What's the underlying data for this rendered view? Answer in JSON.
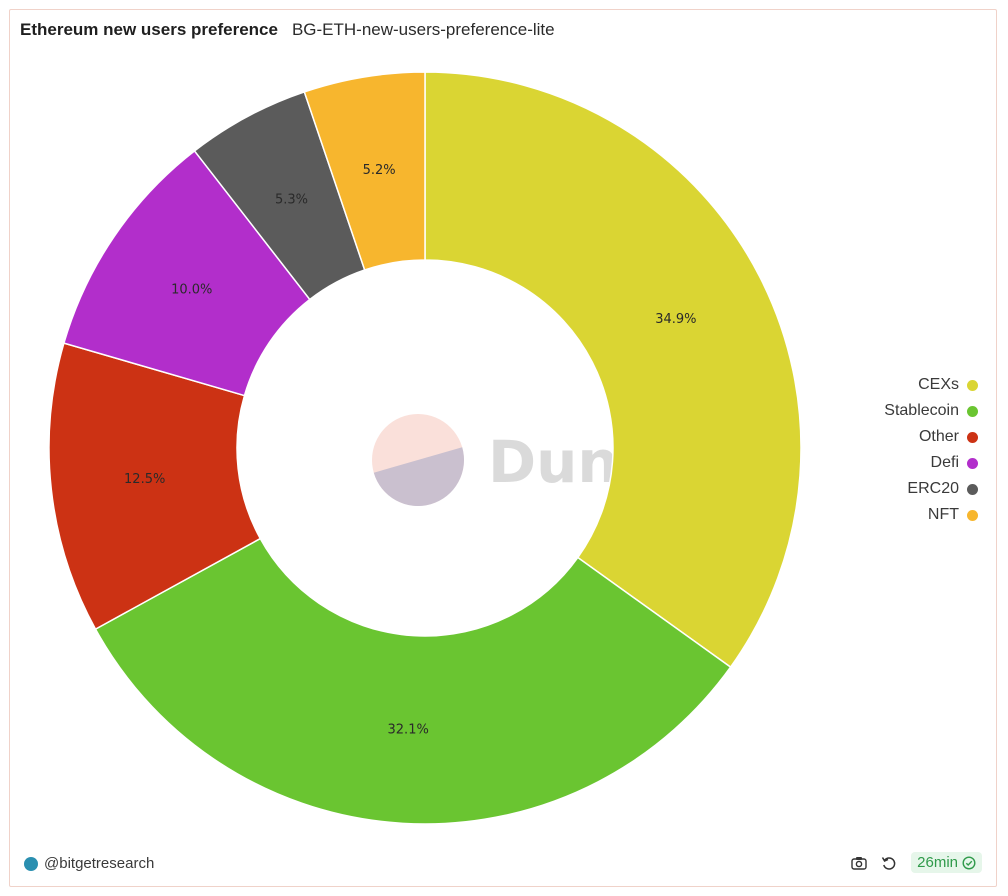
{
  "header": {
    "title": "Ethereum new users preference",
    "subtitle": "BG-ETH-new-users-preference-lite"
  },
  "chart_data": {
    "type": "pie",
    "donut": true,
    "categories": [
      "CEXs",
      "Stablecoin",
      "Other",
      "Defi",
      "ERC20",
      "NFT"
    ],
    "values": [
      34.9,
      32.1,
      12.5,
      10.0,
      5.3,
      5.2
    ],
    "labels": [
      "34.9%",
      "32.1%",
      "12.5%",
      "10.0%",
      "5.3%",
      "5.2%"
    ],
    "colors": [
      "#dad533",
      "#6ac531",
      "#cc3214",
      "#b22ecb",
      "#5b5b5b",
      "#f7b62e"
    ],
    "start": "12 o'clock",
    "direction": "clockwise",
    "legend": "right"
  },
  "watermark": {
    "text": "Dune"
  },
  "footer": {
    "author": "@bitgetresearch",
    "refresh_label": "26min"
  },
  "icons": {
    "camera": "camera-icon",
    "refresh": "refresh-icon",
    "check": "check-circle-icon"
  }
}
